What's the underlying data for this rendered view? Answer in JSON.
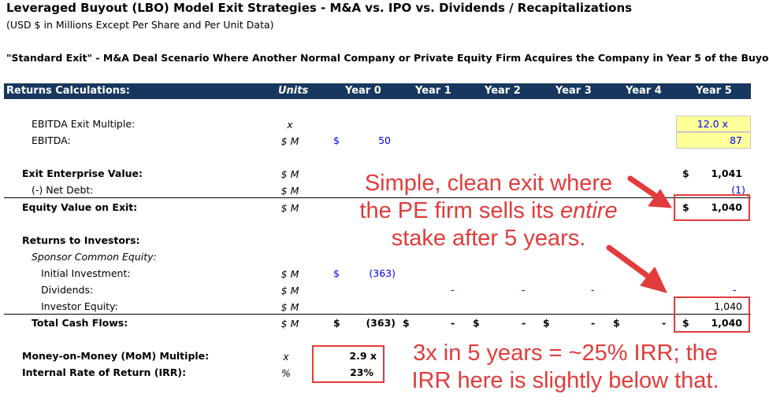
{
  "title": "Leveraged Buyout (LBO) Model Exit Strategies - M&A vs. IPO vs. Dividends / Recapitalizations",
  "subtitle": "(USD $ in Millions Except Per Share and Per Unit Data)",
  "scenario": "\"Standard Exit\" - M&A Deal Scenario Where Another Normal Company or Private Equity Firm Acquires the Company in Year 5 of the Buyo",
  "header": {
    "section": "Returns Calculations:",
    "units": "Units",
    "years": [
      "Year 0",
      "Year 1",
      "Year 2",
      "Year 3",
      "Year 4",
      "Year 5"
    ]
  },
  "rows": {
    "ebitda_multiple": {
      "label": "EBITDA Exit Multiple:",
      "unit": "x",
      "year5": "12.0 x"
    },
    "ebitda": {
      "label": "EBITDA:",
      "unit": "$ M",
      "y0_cur": "$",
      "year0": "50",
      "year5": "87"
    },
    "exit_ev": {
      "label": "Exit Enterprise Value:",
      "unit": "$ M",
      "y5_cur": "$",
      "year5": "1,041"
    },
    "net_debt": {
      "label": "(-) Net Debt:",
      "unit": "$ M",
      "year5": "(1)"
    },
    "equity_value": {
      "label": "Equity Value on Exit:",
      "unit": "$ M",
      "y5_cur": "$",
      "year5": "1,040"
    },
    "returns_header": {
      "label": "Returns to Investors:"
    },
    "sponsor": {
      "label": "Sponsor Common Equity:"
    },
    "initial_investment": {
      "label": "Initial Investment:",
      "unit": "$ M",
      "y0_cur": "$",
      "year0": "(363)"
    },
    "dividends": {
      "label": "Dividends:",
      "unit": "$ M",
      "dash": "-"
    },
    "investor_equity": {
      "label": "Investor Equity:",
      "unit": "$ M",
      "year5": "1,040",
      "dash": "-"
    },
    "total_cash_flows": {
      "label": "Total Cash Flows:",
      "unit": "$ M",
      "cur": "$",
      "year0": "(363)",
      "dash": "-",
      "year5": "1,040"
    },
    "mom": {
      "label": "Money-on-Money (MoM) Multiple:",
      "unit": "x",
      "value": "2.9 x"
    },
    "irr": {
      "label": "Internal Rate of Return (IRR):",
      "unit": "%",
      "value": "23%"
    }
  },
  "callouts": {
    "exit_line1": "Simple, clean exit where",
    "exit_line2_pre": "the PE firm sells its ",
    "exit_line2_em": "entire",
    "exit_line3": "stake after 5 years.",
    "irr_line1": "3x in 5 years = ~25% IRR; the",
    "irr_line2": "IRR here is slightly below that."
  },
  "colors": {
    "header_bg": "#17375e",
    "input_blue": "#0000ff",
    "highlight": "#ffff99",
    "callout_red": "#e23b3b"
  }
}
